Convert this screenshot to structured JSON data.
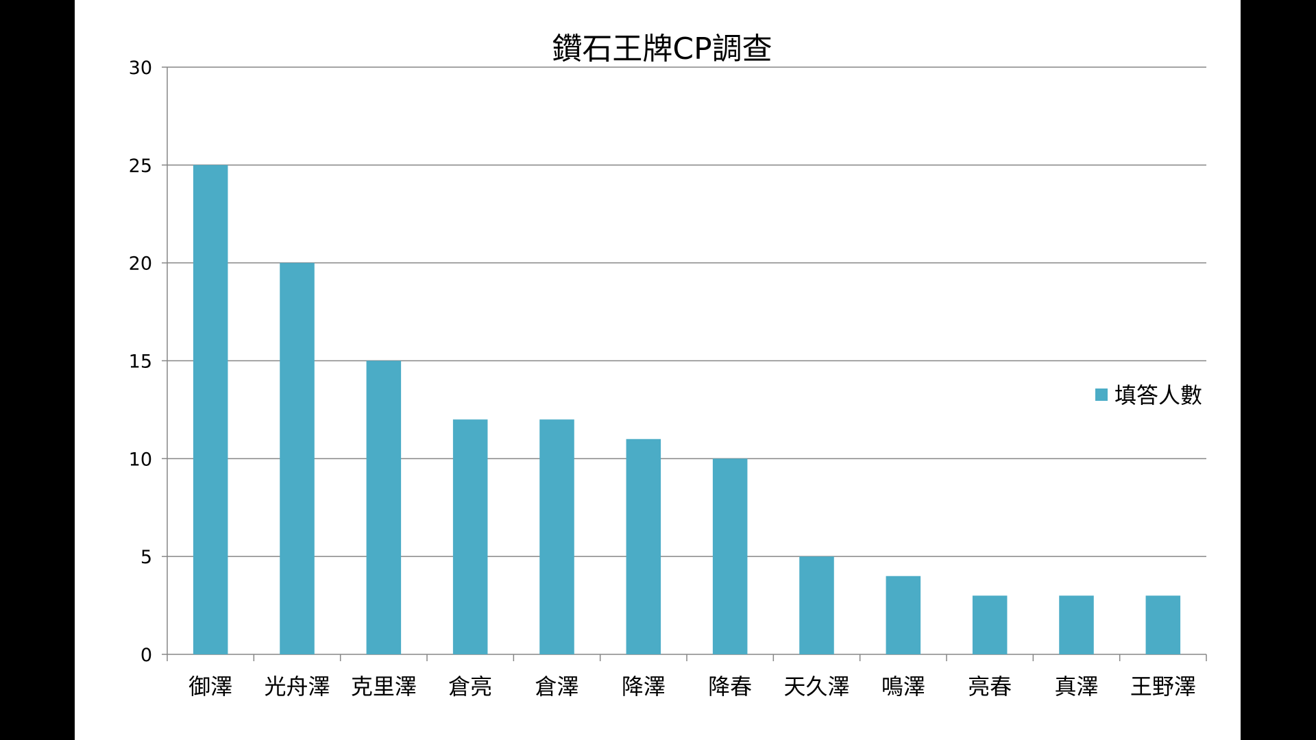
{
  "chart_data": {
    "type": "bar",
    "title": "鑽石王牌CP調查",
    "categories": [
      "御澤",
      "光舟澤",
      "克里澤",
      "倉亮",
      "倉澤",
      "降澤",
      "降春",
      "天久澤",
      "鳴澤",
      "亮春",
      "真澤",
      "王野澤"
    ],
    "series": [
      {
        "name": "填答人數",
        "values": [
          25,
          20,
          15,
          12,
          12,
          11,
          10,
          5,
          4,
          3,
          3,
          3
        ],
        "color": "#4BACC6"
      }
    ],
    "ylim": [
      0,
      30
    ],
    "yticks": [
      0,
      5,
      10,
      15,
      20,
      25,
      30
    ],
    "grid": true,
    "legend_position": "right",
    "colors": {
      "gridline": "#868686",
      "axis": "#868686",
      "background": "#ffffff",
      "frame": "#000000"
    }
  }
}
